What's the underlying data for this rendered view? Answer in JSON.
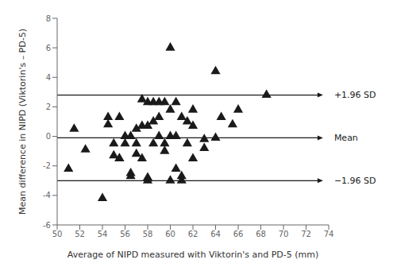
{
  "chart_data": {
    "type": "scatter",
    "marker": "triangle",
    "color": "#1a1a1a",
    "grid": false,
    "x_label": "Average of NIPD measured with Viktorin's and PD-5 (mm)",
    "y_label": "Mean difference in NIPD (Viktorin's – PD-5)",
    "x": [
      51.0,
      51.5,
      52.5,
      54.0,
      54.5,
      54.5,
      55.0,
      55.0,
      55.5,
      55.5,
      55.5,
      56.0,
      56.0,
      56.5,
      56.5,
      56.5,
      57.0,
      57.0,
      57.0,
      57.5,
      57.5,
      57.5,
      58.0,
      58.0,
      58.0,
      58.0,
      58.5,
      58.5,
      58.5,
      59.0,
      59.0,
      59.0,
      59.5,
      59.5,
      59.5,
      60.0,
      60.0,
      60.0,
      60.0,
      60.5,
      60.5,
      60.5,
      61.0,
      61.0,
      61.0,
      61.5,
      61.5,
      62.0,
      62.0,
      62.0,
      63.0,
      63.0,
      64.0,
      64.0,
      64.5,
      65.5,
      66.0,
      68.5
    ],
    "values": [
      -2.2,
      0.5,
      -0.9,
      -4.2,
      1.3,
      0.8,
      -0.5,
      -1.3,
      -1.5,
      1.3,
      -1.5,
      -0.5,
      0.0,
      -2.5,
      -2.7,
      0.0,
      0.5,
      -0.5,
      -1.2,
      0.7,
      2.5,
      -1.5,
      2.3,
      0.7,
      -2.8,
      -3.0,
      1.0,
      2.3,
      -0.5,
      2.3,
      1.3,
      0.0,
      2.3,
      -0.5,
      -1.0,
      6.0,
      1.8,
      0.0,
      -3.0,
      2.3,
      0.0,
      -2.2,
      1.3,
      -3.0,
      -2.7,
      1.0,
      -0.5,
      1.8,
      -1.5,
      0.7,
      -0.2,
      -0.8,
      4.4,
      -0.1,
      1.3,
      0.8,
      1.8,
      2.8
    ],
    "xlim": [
      50,
      74
    ],
    "ylim": [
      -6,
      8
    ],
    "xticks": [
      50,
      52,
      54,
      56,
      58,
      60,
      62,
      64,
      66,
      68,
      70,
      72,
      74
    ],
    "yticks": [
      -6,
      -4,
      -2,
      0,
      2,
      4,
      6,
      8
    ],
    "lines": [
      {
        "label": "+1.96 SD",
        "y": 2.8,
        "x": [
          50,
          73.5
        ],
        "color": "#1a1a1a"
      },
      {
        "label": "Mean",
        "y": -0.1,
        "x": [
          50,
          73.5
        ],
        "color": "#1a1a1a"
      },
      {
        "label": "−1.96 SD",
        "y": -3.0,
        "x": [
          50,
          73.5
        ],
        "color": "#1a1a1a"
      }
    ]
  }
}
